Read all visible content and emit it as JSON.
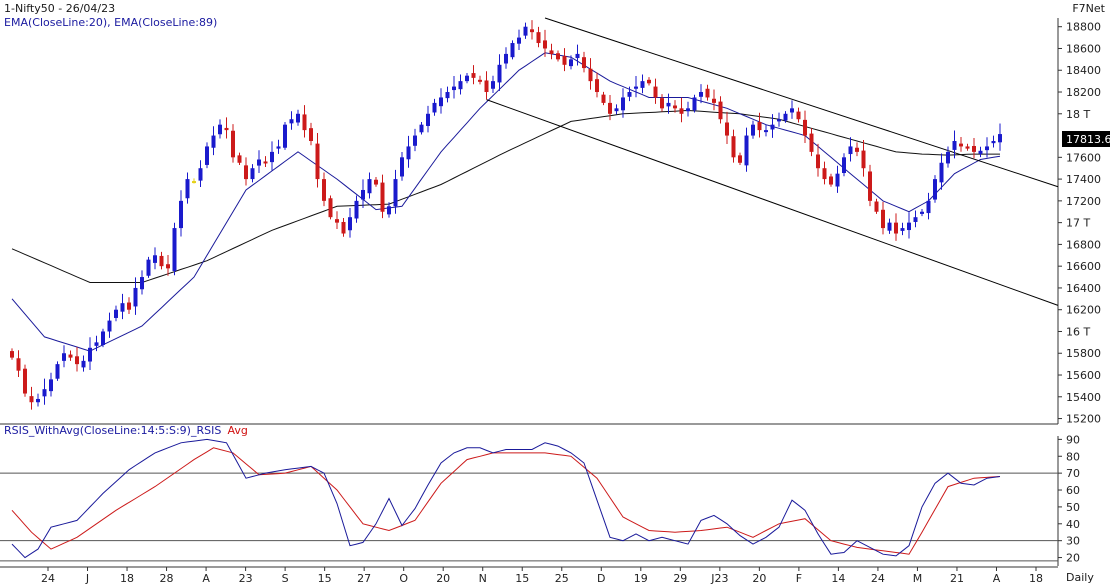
{
  "header": {
    "symbol_title": "1-Nifty50 - 26/04/23",
    "brand": "F7Net",
    "overlay_legend": "EMA(CloseLine:20), EMA(CloseLine:89)"
  },
  "price_badge": "17813.6",
  "rsi_panel": {
    "title": "RSIS_WithAvg(CloseLine:14:5:S:9)",
    "series_a": "_RSIS",
    "series_b": "Avg"
  },
  "footer": {
    "period": "Daily"
  },
  "colors": {
    "up_candle": "#1a1acc",
    "down_candle": "#cc1a1a",
    "doji_candle": "#e6d21a",
    "ema20": "#1a1a9a",
    "ema89": "#111111",
    "rsi_line": "#1a1a9a",
    "rsi_avg": "#cc1a1a",
    "reference_lines": "#555555"
  },
  "chart_data": [
    {
      "type": "candlestick",
      "title": "1-Nifty50 - 26/04/23",
      "y_ticks": [
        "18800",
        "18600",
        "18400",
        "18200",
        "18 T",
        "17600",
        "17400",
        "17200",
        "17 T",
        "16800",
        "16600",
        "16400",
        "16200",
        "16 T",
        "15800",
        "15600",
        "15400",
        "15200"
      ],
      "y_tick_values": [
        18800,
        18600,
        18400,
        18200,
        18000,
        17600,
        17400,
        17200,
        17000,
        16800,
        16600,
        16400,
        16200,
        16000,
        15800,
        15600,
        15400,
        15200
      ],
      "ylim": [
        15150,
        18880
      ],
      "x_ticks": [
        "24",
        "J",
        "18",
        "28",
        "A",
        "23",
        "S",
        "15",
        "27",
        "O",
        "20",
        "N",
        "15",
        "25",
        "D",
        "19",
        "29",
        "J23",
        "20",
        "F",
        "14",
        "24",
        "M",
        "21",
        "A",
        "18"
      ],
      "last_close": 17813.6,
      "close_path": [
        15760,
        15640,
        15430,
        15350,
        15380,
        15470,
        15560,
        15700,
        15800,
        15760,
        15700,
        15730,
        15850,
        15900,
        16000,
        16100,
        16200,
        16260,
        16200,
        16400,
        16500,
        16660,
        16700,
        16600,
        16580,
        16950,
        17200,
        17400,
        17380,
        17500,
        17700,
        17800,
        17900,
        17850,
        17600,
        17550,
        17400,
        17500,
        17580,
        17550,
        17650,
        17700,
        17900,
        17950,
        18000,
        17850,
        17750,
        17400,
        17200,
        17050,
        17000,
        16900,
        17050,
        17200,
        17300,
        17400,
        17350,
        17100,
        17150,
        17400,
        17600,
        17700,
        17800,
        17900,
        18000,
        18100,
        18150,
        18200,
        18250,
        18300,
        18350,
        18330,
        18300,
        18200,
        18300,
        18450,
        18550,
        18650,
        18700,
        18800,
        18750,
        18650,
        18600,
        18550,
        18500,
        18450,
        18500,
        18550,
        18420,
        18300,
        18200,
        18100,
        18000,
        18050,
        18150,
        18200,
        18250,
        18300,
        18280,
        18150,
        18050,
        18100,
        18050,
        18000,
        18050,
        18150,
        18200,
        18150,
        18100,
        17950,
        17800,
        17600,
        17550,
        17800,
        17900,
        17850,
        17850,
        17900,
        17950,
        18000,
        18050,
        17950,
        17800,
        17650,
        17500,
        17400,
        17350,
        17450,
        17600,
        17700,
        17650,
        17500,
        17200,
        17100,
        16950,
        17000,
        16900,
        16950,
        17000,
        17050,
        17100,
        17200,
        17400,
        17550,
        17650,
        17750,
        17700,
        17680,
        17650,
        17660,
        17700,
        17750,
        17813.6
      ],
      "series": [
        {
          "name": "EMA(CloseLine:20)",
          "anchors": [
            [
              0,
              16300
            ],
            [
              5,
              15950
            ],
            [
              12,
              15820
            ],
            [
              20,
              16050
            ],
            [
              28,
              16500
            ],
            [
              36,
              17300
            ],
            [
              44,
              17650
            ],
            [
              50,
              17400
            ],
            [
              56,
              17120
            ],
            [
              60,
              17150
            ],
            [
              66,
              17650
            ],
            [
              72,
              18050
            ],
            [
              78,
              18400
            ],
            [
              82,
              18560
            ],
            [
              86,
              18520
            ],
            [
              92,
              18300
            ],
            [
              98,
              18150
            ],
            [
              104,
              18150
            ],
            [
              110,
              18050
            ],
            [
              116,
              17900
            ],
            [
              122,
              17800
            ],
            [
              128,
              17500
            ],
            [
              134,
              17200
            ],
            [
              138,
              17100
            ],
            [
              141,
              17200
            ],
            [
              145,
              17450
            ],
            [
              149,
              17580
            ],
            [
              152,
              17610
            ]
          ]
        },
        {
          "name": "EMA(CloseLine:89)",
          "anchors": [
            [
              0,
              16760
            ],
            [
              12,
              16450
            ],
            [
              20,
              16450
            ],
            [
              30,
              16650
            ],
            [
              40,
              16930
            ],
            [
              50,
              17150
            ],
            [
              58,
              17170
            ],
            [
              66,
              17350
            ],
            [
              76,
              17650
            ],
            [
              86,
              17930
            ],
            [
              94,
              18000
            ],
            [
              104,
              18030
            ],
            [
              112,
              18000
            ],
            [
              118,
              17950
            ],
            [
              124,
              17850
            ],
            [
              130,
              17750
            ],
            [
              136,
              17650
            ],
            [
              140,
              17630
            ],
            [
              144,
              17620
            ],
            [
              148,
              17630
            ],
            [
              152,
              17630
            ]
          ]
        }
      ],
      "trendlines": [
        {
          "from": [
            82,
            18880
          ],
          "to": [
            165,
            17330
          ]
        },
        {
          "from": [
            73,
            18130
          ],
          "to": [
            165,
            16240
          ]
        }
      ]
    },
    {
      "type": "line",
      "title": "RSIS_WithAvg(CloseLine:14:5:S:9)",
      "y_ticks": [
        "90",
        "80",
        "70",
        "60",
        "50",
        "40",
        "30",
        "20"
      ],
      "y_tick_values": [
        90,
        80,
        70,
        60,
        50,
        40,
        30,
        20
      ],
      "ylim": [
        15,
        92
      ],
      "reference_levels": [
        70,
        30,
        18
      ],
      "series": [
        {
          "name": "_RSIS",
          "anchors": [
            [
              0,
              28
            ],
            [
              2,
              20
            ],
            [
              4,
              25
            ],
            [
              6,
              38
            ],
            [
              10,
              42
            ],
            [
              14,
              58
            ],
            [
              18,
              72
            ],
            [
              22,
              82
            ],
            [
              26,
              88
            ],
            [
              30,
              90
            ],
            [
              33,
              88
            ],
            [
              36,
              67
            ],
            [
              39,
              70
            ],
            [
              42,
              72
            ],
            [
              46,
              74
            ],
            [
              48,
              70
            ],
            [
              50,
              52
            ],
            [
              52,
              27
            ],
            [
              54,
              29
            ],
            [
              56,
              40
            ],
            [
              58,
              55
            ],
            [
              60,
              39
            ],
            [
              62,
              49
            ],
            [
              64,
              63
            ],
            [
              66,
              76
            ],
            [
              68,
              82
            ],
            [
              70,
              85
            ],
            [
              72,
              85
            ],
            [
              74,
              82
            ],
            [
              76,
              84
            ],
            [
              78,
              84
            ],
            [
              80,
              84
            ],
            [
              82,
              88
            ],
            [
              84,
              86
            ],
            [
              86,
              82
            ],
            [
              88,
              76
            ],
            [
              90,
              54
            ],
            [
              92,
              32
            ],
            [
              94,
              30
            ],
            [
              96,
              34
            ],
            [
              98,
              30
            ],
            [
              100,
              32
            ],
            [
              102,
              30
            ],
            [
              104,
              28
            ],
            [
              106,
              42
            ],
            [
              108,
              45
            ],
            [
              110,
              40
            ],
            [
              112,
              33
            ],
            [
              114,
              28
            ],
            [
              116,
              32
            ],
            [
              118,
              38
            ],
            [
              120,
              54
            ],
            [
              122,
              48
            ],
            [
              124,
              34
            ],
            [
              126,
              22
            ],
            [
              128,
              23
            ],
            [
              130,
              30
            ],
            [
              132,
              26
            ],
            [
              134,
              22
            ],
            [
              136,
              21
            ],
            [
              138,
              27
            ],
            [
              140,
              50
            ],
            [
              142,
              64
            ],
            [
              144,
              70
            ],
            [
              146,
              64
            ],
            [
              148,
              63
            ],
            [
              150,
              67
            ],
            [
              152,
              68
            ]
          ]
        },
        {
          "name": "Avg",
          "anchors": [
            [
              0,
              48
            ],
            [
              3,
              35
            ],
            [
              6,
              25
            ],
            [
              10,
              32
            ],
            [
              16,
              48
            ],
            [
              22,
              62
            ],
            [
              28,
              78
            ],
            [
              31,
              85
            ],
            [
              34,
              82
            ],
            [
              38,
              69
            ],
            [
              42,
              70
            ],
            [
              46,
              74
            ],
            [
              50,
              60
            ],
            [
              54,
              40
            ],
            [
              58,
              36
            ],
            [
              62,
              42
            ],
            [
              66,
              64
            ],
            [
              70,
              78
            ],
            [
              74,
              82
            ],
            [
              78,
              82
            ],
            [
              82,
              82
            ],
            [
              86,
              80
            ],
            [
              90,
              67
            ],
            [
              94,
              44
            ],
            [
              98,
              36
            ],
            [
              102,
              35
            ],
            [
              106,
              36
            ],
            [
              110,
              38
            ],
            [
              114,
              32
            ],
            [
              118,
              40
            ],
            [
              122,
              43
            ],
            [
              126,
              30
            ],
            [
              130,
              26
            ],
            [
              134,
              24
            ],
            [
              138,
              22
            ],
            [
              140,
              35
            ],
            [
              144,
              62
            ],
            [
              148,
              67
            ],
            [
              152,
              68
            ]
          ]
        }
      ]
    }
  ]
}
